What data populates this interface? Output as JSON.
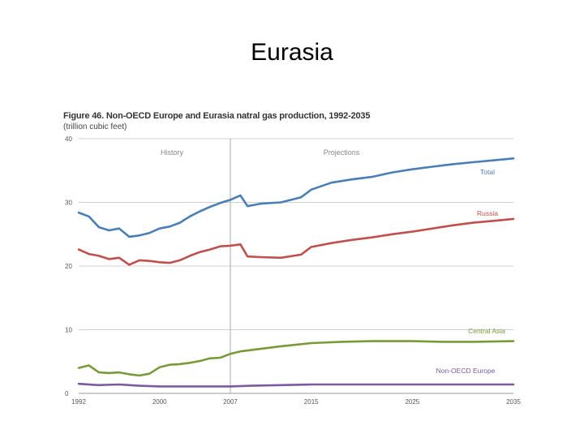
{
  "slide": {
    "title": "Eurasia"
  },
  "figure": {
    "title": "Figure 46. Non-OECD Europe and Eurasia natral gas production, 1992-2035",
    "units": "(trillion cubic feet)"
  },
  "chart_data": {
    "type": "line",
    "title": "Figure 46. Non-OECD Europe and Eurasia natral gas production, 1992-2035",
    "ylabel": "(trillion cubic feet)",
    "xlabel": "",
    "xlim": [
      1992,
      2035
    ],
    "ylim": [
      0,
      40
    ],
    "xticks": [
      1992,
      2000,
      2007,
      2015,
      2025,
      2035
    ],
    "yticks": [
      0,
      10,
      20,
      30,
      40
    ],
    "grid": true,
    "divider_year": 2007,
    "region_labels": {
      "history": "History",
      "projections": "Projections"
    },
    "colors": {
      "Total": "#4a7eb5",
      "Russia": "#c0504d",
      "Central Asia": "#7a9a3a",
      "Non-OECD Europe": "#7b5aa0"
    },
    "series": [
      {
        "name": "Total",
        "label": "Total",
        "points": [
          [
            1992,
            28.4
          ],
          [
            1993,
            27.8
          ],
          [
            1994,
            26.1
          ],
          [
            1995,
            25.6
          ],
          [
            1996,
            25.9
          ],
          [
            1997,
            24.6
          ],
          [
            1998,
            24.8
          ],
          [
            1999,
            25.2
          ],
          [
            2000,
            25.9
          ],
          [
            2001,
            26.2
          ],
          [
            2002,
            26.8
          ],
          [
            2003,
            27.8
          ],
          [
            2004,
            28.6
          ],
          [
            2005,
            29.3
          ],
          [
            2006,
            29.9
          ],
          [
            2007,
            30.4
          ],
          [
            2008,
            31.1
          ],
          [
            2008.7,
            29.4
          ],
          [
            2010,
            29.8
          ],
          [
            2012,
            30.0
          ],
          [
            2014,
            30.8
          ],
          [
            2015,
            32.0
          ],
          [
            2017,
            33.1
          ],
          [
            2019,
            33.6
          ],
          [
            2021,
            34.0
          ],
          [
            2023,
            34.7
          ],
          [
            2025,
            35.2
          ],
          [
            2027,
            35.6
          ],
          [
            2029,
            36.0
          ],
          [
            2031,
            36.3
          ],
          [
            2033,
            36.6
          ],
          [
            2035,
            36.9
          ]
        ]
      },
      {
        "name": "Russia",
        "label": "Russia",
        "points": [
          [
            1992,
            22.6
          ],
          [
            1993,
            21.9
          ],
          [
            1994,
            21.6
          ],
          [
            1995,
            21.1
          ],
          [
            1996,
            21.3
          ],
          [
            1997,
            20.2
          ],
          [
            1998,
            20.9
          ],
          [
            1999,
            20.8
          ],
          [
            2000,
            20.6
          ],
          [
            2001,
            20.5
          ],
          [
            2002,
            20.9
          ],
          [
            2003,
            21.6
          ],
          [
            2004,
            22.2
          ],
          [
            2005,
            22.6
          ],
          [
            2006,
            23.1
          ],
          [
            2007,
            23.2
          ],
          [
            2008,
            23.4
          ],
          [
            2008.7,
            21.5
          ],
          [
            2010,
            21.4
          ],
          [
            2012,
            21.3
          ],
          [
            2014,
            21.8
          ],
          [
            2015,
            23.0
          ],
          [
            2017,
            23.6
          ],
          [
            2019,
            24.1
          ],
          [
            2021,
            24.5
          ],
          [
            2023,
            25.0
          ],
          [
            2025,
            25.4
          ],
          [
            2027,
            25.9
          ],
          [
            2029,
            26.4
          ],
          [
            2031,
            26.8
          ],
          [
            2033,
            27.1
          ],
          [
            2035,
            27.4
          ]
        ]
      },
      {
        "name": "Central Asia",
        "label": "Central Asia",
        "points": [
          [
            1992,
            4.0
          ],
          [
            1993,
            4.4
          ],
          [
            1994,
            3.3
          ],
          [
            1995,
            3.2
          ],
          [
            1996,
            3.3
          ],
          [
            1997,
            3.0
          ],
          [
            1998,
            2.8
          ],
          [
            1999,
            3.1
          ],
          [
            2000,
            4.1
          ],
          [
            2001,
            4.5
          ],
          [
            2002,
            4.6
          ],
          [
            2003,
            4.8
          ],
          [
            2004,
            5.1
          ],
          [
            2005,
            5.5
          ],
          [
            2006,
            5.6
          ],
          [
            2007,
            6.2
          ],
          [
            2008,
            6.6
          ],
          [
            2010,
            7.0
          ],
          [
            2012,
            7.4
          ],
          [
            2015,
            7.9
          ],
          [
            2018,
            8.1
          ],
          [
            2021,
            8.2
          ],
          [
            2025,
            8.2
          ],
          [
            2028,
            8.1
          ],
          [
            2031,
            8.1
          ],
          [
            2035,
            8.2
          ]
        ]
      },
      {
        "name": "Non-OECD Europe",
        "label": "Non-OECD Europe",
        "points": [
          [
            1992,
            1.5
          ],
          [
            1994,
            1.3
          ],
          [
            1996,
            1.4
          ],
          [
            1998,
            1.2
          ],
          [
            2000,
            1.1
          ],
          [
            2003,
            1.1
          ],
          [
            2005,
            1.1
          ],
          [
            2007,
            1.1
          ],
          [
            2009,
            1.2
          ],
          [
            2012,
            1.3
          ],
          [
            2015,
            1.4
          ],
          [
            2020,
            1.4
          ],
          [
            2025,
            1.4
          ],
          [
            2030,
            1.4
          ],
          [
            2035,
            1.4
          ]
        ]
      }
    ]
  }
}
